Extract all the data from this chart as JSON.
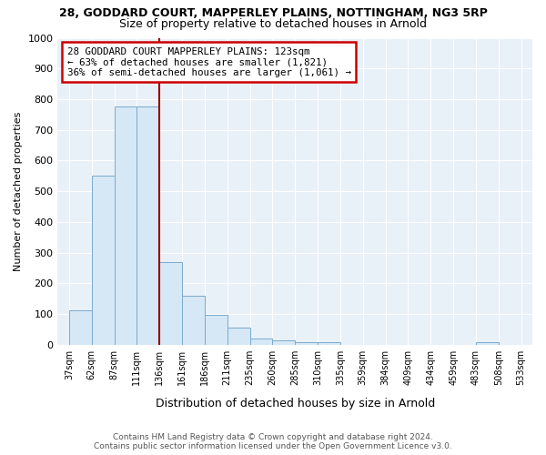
{
  "title": "28, GODDARD COURT, MAPPERLEY PLAINS, NOTTINGHAM, NG3 5RP",
  "subtitle": "Size of property relative to detached houses in Arnold",
  "xlabel": "Distribution of detached houses by size in Arnold",
  "ylabel": "Number of detached properties",
  "footer_line1": "Contains HM Land Registry data © Crown copyright and database right 2024.",
  "footer_line2": "Contains public sector information licensed under the Open Government Licence v3.0.",
  "categories": [
    "37sqm",
    "62sqm",
    "87sqm",
    "111sqm",
    "136sqm",
    "161sqm",
    "186sqm",
    "211sqm",
    "235sqm",
    "260sqm",
    "285sqm",
    "310sqm",
    "335sqm",
    "359sqm",
    "384sqm",
    "409sqm",
    "434sqm",
    "459sqm",
    "483sqm",
    "508sqm",
    "533sqm"
  ],
  "values": [
    111,
    550,
    775,
    775,
    270,
    160,
    98,
    55,
    20,
    13,
    10,
    8,
    0,
    0,
    0,
    0,
    0,
    0,
    8,
    0,
    0
  ],
  "bar_color": "#d6e8f5",
  "bar_edge_color": "#7aabcd",
  "vline_color": "#990000",
  "annotation_text": "28 GODDARD COURT MAPPERLEY PLAINS: 123sqm\n← 63% of detached houses are smaller (1,821)\n36% of semi-detached houses are larger (1,061) →",
  "annotation_box_edgecolor": "#cc0000",
  "ylim": [
    0,
    1000
  ],
  "yticks": [
    0,
    100,
    200,
    300,
    400,
    500,
    600,
    700,
    800,
    900,
    1000
  ],
  "bg_color": "#ffffff",
  "plot_bg_color": "#e8f0f8",
  "grid_color": "#ffffff",
  "title_fontsize": 9,
  "subtitle_fontsize": 9
}
